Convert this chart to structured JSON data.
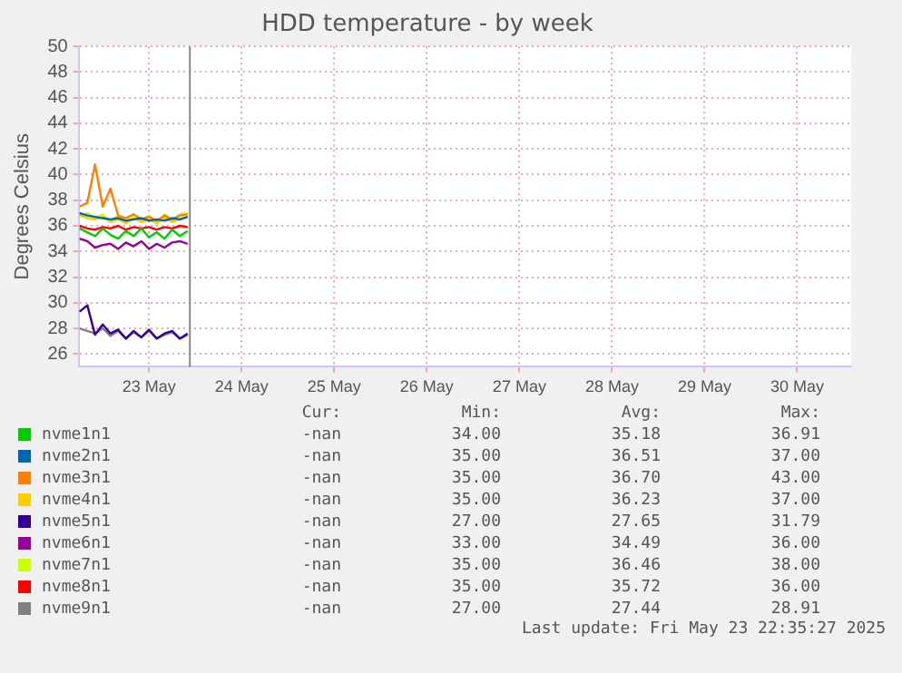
{
  "chart_data": {
    "type": "line",
    "title": "HDD temperature - by week",
    "ylabel": "Degrees Celsius",
    "x": [
      "2025-05-22T18:00",
      "2025-05-22T20:00",
      "2025-05-22T22:00",
      "2025-05-23T00:00",
      "2025-05-23T02:00",
      "2025-05-23T04:00",
      "2025-05-23T06:00",
      "2025-05-23T08:00",
      "2025-05-23T10:00",
      "2025-05-23T12:00",
      "2025-05-23T14:00",
      "2025-05-23T16:00",
      "2025-05-23T18:00",
      "2025-05-23T20:00",
      "2025-05-23T22:00"
    ],
    "series": [
      {
        "name": "nvme1n1",
        "color": "#00cc00",
        "values": [
          35.8,
          35.5,
          35.2,
          35.8,
          35.3,
          35.0,
          35.6,
          35.2,
          35.8,
          35.1,
          35.5,
          35.0,
          35.7,
          35.2,
          35.6
        ]
      },
      {
        "name": "nvme2n1",
        "color": "#0066b3",
        "values": [
          37.0,
          36.8,
          36.7,
          36.6,
          36.5,
          36.6,
          36.4,
          36.5,
          36.6,
          36.4,
          36.5,
          36.4,
          36.6,
          36.5,
          36.7
        ]
      },
      {
        "name": "nvme3n1",
        "color": "#ff8000",
        "values": [
          37.5,
          37.8,
          40.8,
          37.5,
          38.9,
          36.8,
          36.6,
          36.9,
          36.5,
          36.7,
          36.4,
          36.8,
          36.5,
          36.8,
          36.9
        ]
      },
      {
        "name": "nvme4n1",
        "color": "#ffcc00",
        "values": [
          36.8,
          36.6,
          36.5,
          36.7,
          36.3,
          36.5,
          36.2,
          36.6,
          36.3,
          36.5,
          36.2,
          36.6,
          36.3,
          36.5,
          36.7
        ]
      },
      {
        "name": "nvme5n1",
        "color": "#330099",
        "values": [
          29.3,
          29.8,
          27.5,
          28.3,
          27.6,
          27.9,
          27.2,
          27.8,
          27.3,
          27.9,
          27.2,
          27.6,
          27.8,
          27.2,
          27.6
        ]
      },
      {
        "name": "nvme6n1",
        "color": "#990099",
        "values": [
          35.0,
          34.8,
          34.3,
          34.5,
          34.6,
          34.2,
          34.7,
          34.4,
          34.8,
          34.2,
          34.6,
          34.3,
          34.7,
          34.8,
          34.6
        ]
      },
      {
        "name": "nvme7n1",
        "color": "#ccff00",
        "values": [
          36.8,
          37.0,
          36.6,
          36.9,
          36.4,
          36.8,
          36.3,
          36.9,
          36.5,
          36.8,
          36.2,
          36.9,
          36.4,
          36.9,
          37.0
        ]
      },
      {
        "name": "nvme8n1",
        "color": "#ff0000",
        "values": [
          36.0,
          35.8,
          35.7,
          35.9,
          35.8,
          36.0,
          35.7,
          35.9,
          35.8,
          35.9,
          35.7,
          35.9,
          35.8,
          36.0,
          35.9
        ]
      },
      {
        "name": "nvme9n1",
        "color": "#808080",
        "values": [
          28.0,
          27.8,
          27.6,
          28.0,
          27.4,
          27.8,
          27.2,
          27.7,
          27.3,
          27.8,
          27.2,
          27.5,
          27.7,
          27.2,
          27.5
        ]
      }
    ],
    "xlim": [
      "2025-05-22T17:45",
      "2025-05-31T02:00"
    ],
    "xticks": [
      {
        "value": "2025-05-23T12:00",
        "label": "23 May"
      },
      {
        "value": "2025-05-24T12:00",
        "label": "24 May"
      },
      {
        "value": "2025-05-25T12:00",
        "label": "25 May"
      },
      {
        "value": "2025-05-26T12:00",
        "label": "26 May"
      },
      {
        "value": "2025-05-27T12:00",
        "label": "27 May"
      },
      {
        "value": "2025-05-28T12:00",
        "label": "28 May"
      },
      {
        "value": "2025-05-29T12:00",
        "label": "29 May"
      },
      {
        "value": "2025-05-30T12:00",
        "label": "30 May"
      }
    ],
    "ylim": [
      25,
      50
    ],
    "yticks": [
      26,
      28,
      30,
      32,
      34,
      36,
      38,
      40,
      42,
      44,
      46,
      48,
      50
    ],
    "ref_lines": [
      {
        "axis": "x",
        "value": "2025-05-23T22:35",
        "color": "#888888"
      }
    ],
    "grid": true,
    "legend": "bottom",
    "marker": "none",
    "line_style": "solid",
    "annotations": [
      "Cur: Min: Avg: Max:",
      "-nan 34.00 35.18 36.91",
      "-nan 35.00 36.51 37.00",
      "-nan 35.00 36.70 43.00",
      "-nan 35.00 36.23 37.00",
      "-nan 27.00 27.65 31.79",
      "-nan 33.00 34.49 36.00",
      "-nan 35.00 36.46 38.00",
      "-nan 35.00 35.72 36.00",
      "-nan 27.00 27.44 28.91",
      "Last update: Fri May 23 22:35:27 2025"
    ]
  }
}
